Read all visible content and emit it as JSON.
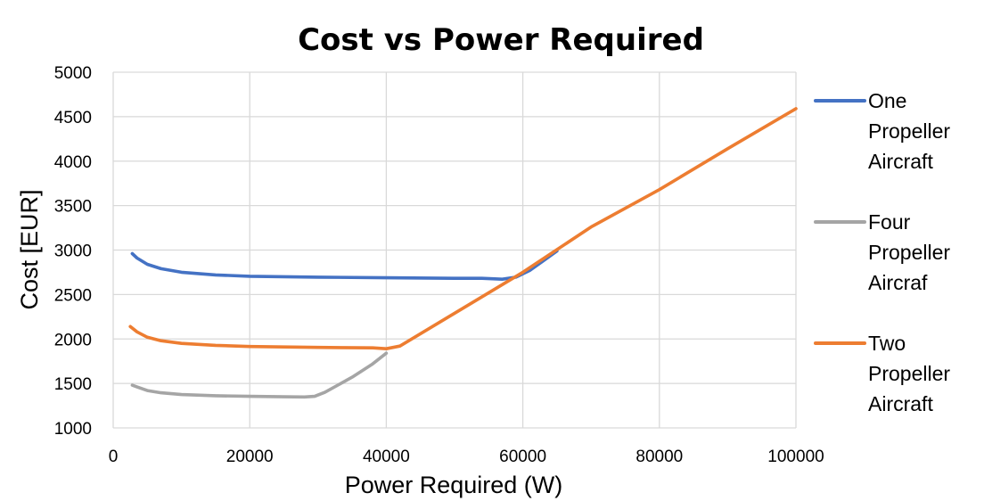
{
  "chart_data": {
    "type": "line",
    "title": "Cost vs Power Required",
    "xlabel": "Power Required (W)",
    "ylabel": "Cost [EUR]",
    "xlim": [
      0,
      100000
    ],
    "ylim": [
      1000,
      5000
    ],
    "x_ticks": [
      "0",
      "20000",
      "40000",
      "60000",
      "80000",
      "100000"
    ],
    "y_ticks": [
      "1000",
      "1500",
      "2000",
      "2500",
      "3000",
      "3500",
      "4000",
      "4500",
      "5000"
    ],
    "grid": true,
    "legend_position": "right",
    "series": [
      {
        "name": "One Propeller Aircraft",
        "color": "#4472c4",
        "points": [
          [
            2800,
            2960
          ],
          [
            3500,
            2910
          ],
          [
            5000,
            2840
          ],
          [
            7000,
            2790
          ],
          [
            10000,
            2750
          ],
          [
            15000,
            2720
          ],
          [
            20000,
            2705
          ],
          [
            30000,
            2695
          ],
          [
            40000,
            2688
          ],
          [
            50000,
            2682
          ],
          [
            54000,
            2682
          ],
          [
            57000,
            2672
          ],
          [
            59000,
            2695
          ],
          [
            61000,
            2770
          ],
          [
            63000,
            2880
          ],
          [
            65000,
            2990
          ]
        ]
      },
      {
        "name": "Four Propeller Aircraf",
        "color": "#a5a5a5",
        "points": [
          [
            2800,
            1480
          ],
          [
            3500,
            1460
          ],
          [
            5000,
            1420
          ],
          [
            7000,
            1395
          ],
          [
            10000,
            1375
          ],
          [
            15000,
            1362
          ],
          [
            20000,
            1355
          ],
          [
            25000,
            1350
          ],
          [
            28000,
            1348
          ],
          [
            29500,
            1355
          ],
          [
            31000,
            1400
          ],
          [
            35000,
            1570
          ],
          [
            38000,
            1720
          ],
          [
            40000,
            1840
          ]
        ]
      },
      {
        "name": "Two Propeller Aircraft",
        "color": "#ed7d31",
        "points": [
          [
            2500,
            2140
          ],
          [
            3500,
            2080
          ],
          [
            5000,
            2020
          ],
          [
            7000,
            1980
          ],
          [
            10000,
            1950
          ],
          [
            15000,
            1928
          ],
          [
            20000,
            1915
          ],
          [
            30000,
            1905
          ],
          [
            38000,
            1900
          ],
          [
            40000,
            1890
          ],
          [
            42000,
            1920
          ],
          [
            60000,
            2750
          ],
          [
            70000,
            3260
          ],
          [
            80000,
            3680
          ],
          [
            90000,
            4140
          ],
          [
            100000,
            4590
          ]
        ]
      }
    ],
    "legend_labels": [
      [
        "One",
        "Propeller",
        "Aircraft"
      ],
      [
        "Four",
        "Propeller",
        "Aircraf"
      ],
      [
        "Two",
        "Propeller",
        "Aircraft"
      ]
    ]
  }
}
